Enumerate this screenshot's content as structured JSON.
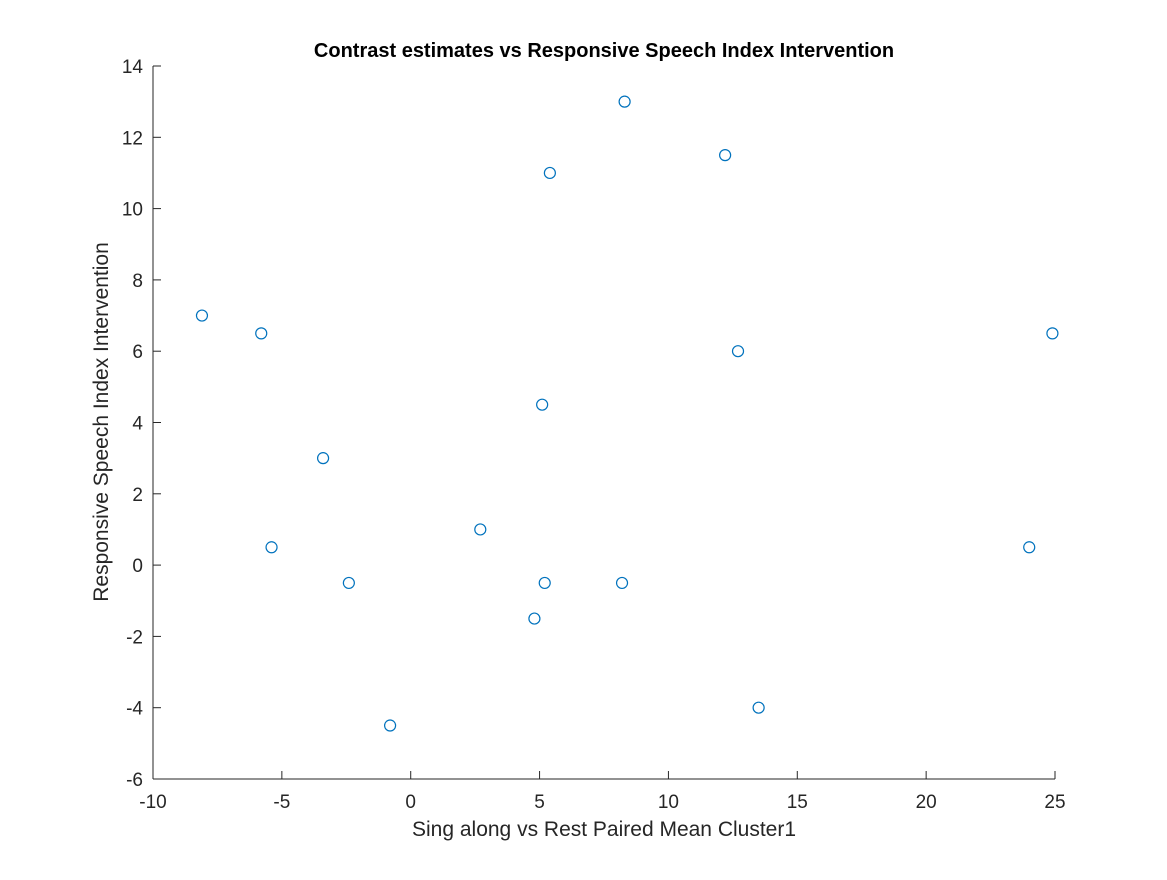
{
  "chart_data": {
    "type": "scatter",
    "title": "Contrast estimates vs  Responsive Speech Index Intervention",
    "xlabel": "Sing along vs Rest Paired Mean Cluster1",
    "ylabel": "Responsive Speech Index Intervention",
    "xlim": [
      -10,
      25
    ],
    "ylim": [
      -6,
      14
    ],
    "xticks": [
      "-10",
      "-5",
      "0",
      "5",
      "10",
      "15",
      "20",
      "25"
    ],
    "yticks": [
      "-6",
      "-4",
      "-2",
      "0",
      "2",
      "4",
      "6",
      "8",
      "10",
      "12",
      "14"
    ],
    "grid": false,
    "marker": "open-circle",
    "marker_color": "#0072BD",
    "axis_color": "#262626",
    "series": [
      {
        "points": [
          {
            "x": -8.1,
            "y": 7.0
          },
          {
            "x": -5.8,
            "y": 6.5
          },
          {
            "x": -5.4,
            "y": 0.5
          },
          {
            "x": -3.4,
            "y": 3.0
          },
          {
            "x": -2.4,
            "y": -0.5
          },
          {
            "x": -0.8,
            "y": -4.5
          },
          {
            "x": 2.7,
            "y": 1.0
          },
          {
            "x": 4.8,
            "y": -1.5
          },
          {
            "x": 5.1,
            "y": 4.5
          },
          {
            "x": 5.2,
            "y": -0.5
          },
          {
            "x": 5.4,
            "y": 11.0
          },
          {
            "x": 8.2,
            "y": -0.5
          },
          {
            "x": 8.3,
            "y": 13.0
          },
          {
            "x": 12.2,
            "y": 11.5
          },
          {
            "x": 12.7,
            "y": 6.0
          },
          {
            "x": 13.5,
            "y": -4.0
          },
          {
            "x": 24.0,
            "y": 0.5
          },
          {
            "x": 24.9,
            "y": 6.5
          }
        ]
      }
    ]
  }
}
